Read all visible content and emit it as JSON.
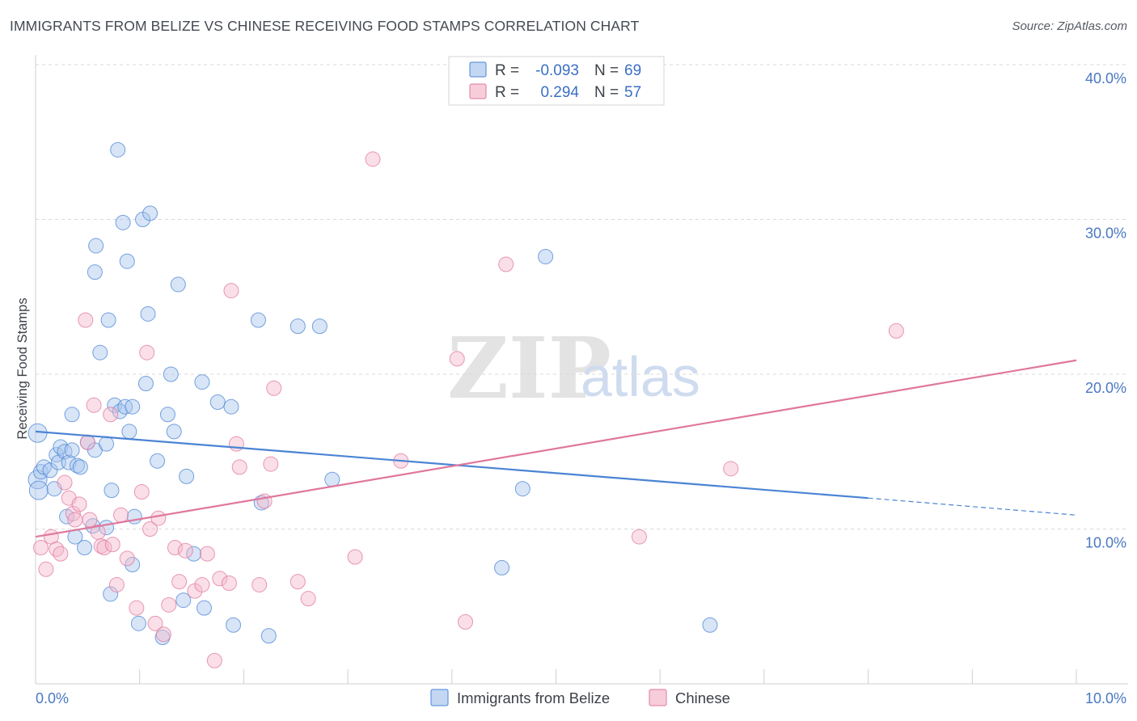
{
  "header": {
    "title": "IMMIGRANTS FROM BELIZE VS CHINESE RECEIVING FOOD STAMPS CORRELATION CHART",
    "source": "Source: ZipAtlas.com"
  },
  "watermark": {
    "zip": "ZIP",
    "atlas": "atlas"
  },
  "legend_box": {
    "rows": [
      {
        "r_label": "R =",
        "r_value": "-0.093",
        "n_label": "N =",
        "n_value": "69",
        "color": "#a9c6ee"
      },
      {
        "r_label": "R =",
        "r_value": "0.294",
        "n_label": "N =",
        "n_value": "57",
        "color": "#f4b8cb"
      }
    ]
  },
  "bottom_legend": {
    "items": [
      {
        "label": "Immigrants from Belize",
        "color": "#a9c6ee"
      },
      {
        "label": "Chinese",
        "color": "#f4b8cb"
      }
    ]
  },
  "chart_data": {
    "type": "scatter",
    "title": "IMMIGRANTS FROM BELIZE VS CHINESE RECEIVING FOOD STAMPS CORRELATION CHART",
    "xlabel": "",
    "ylabel": "Receiving Food Stamps",
    "xlim": [
      0,
      10
    ],
    "ylim": [
      0,
      40
    ],
    "x_tick_labels": [
      "0.0%",
      "10.0%"
    ],
    "y_ticks": [
      10,
      20,
      30,
      40
    ],
    "y_tick_labels": [
      "10.0%",
      "20.0%",
      "30.0%",
      "40.0%"
    ],
    "grid": true,
    "colors": {
      "belize": "#4a84d4",
      "chinese": "#e0779d",
      "belize_fill": "#a9c6ee",
      "chinese_fill": "#f4b8cb"
    },
    "series": [
      {
        "name": "Immigrants from Belize",
        "trend": {
          "x0": 0.0,
          "y0": 16.3,
          "x1": 8.0,
          "y1": 12.0,
          "x_dash_end": 10.0,
          "y_dash_end": 10.9
        },
        "points": [
          [
            0.02,
            16.2,
            2
          ],
          [
            0.02,
            13.2,
            2
          ],
          [
            0.03,
            12.5,
            2
          ],
          [
            0.05,
            13.7,
            1
          ],
          [
            0.08,
            14.0,
            1
          ],
          [
            0.14,
            13.8,
            1
          ],
          [
            0.18,
            12.6,
            1
          ],
          [
            0.2,
            14.8,
            1
          ],
          [
            0.22,
            14.3,
            1
          ],
          [
            0.24,
            15.3,
            1
          ],
          [
            0.28,
            15.0,
            1
          ],
          [
            0.3,
            10.8,
            1
          ],
          [
            0.32,
            14.3,
            1
          ],
          [
            0.35,
            15.1,
            1
          ],
          [
            0.35,
            17.4,
            1
          ],
          [
            0.38,
            9.5,
            1
          ],
          [
            0.4,
            14.1,
            1
          ],
          [
            0.43,
            14.0,
            1
          ],
          [
            0.47,
            8.8,
            1
          ],
          [
            0.5,
            15.6,
            1
          ],
          [
            0.55,
            10.2,
            1
          ],
          [
            0.57,
            15.1,
            1
          ],
          [
            0.57,
            26.6,
            1
          ],
          [
            0.58,
            28.3,
            1
          ],
          [
            0.62,
            21.4,
            1
          ],
          [
            0.68,
            10.1,
            1
          ],
          [
            0.68,
            15.5,
            1
          ],
          [
            0.7,
            23.5,
            1
          ],
          [
            0.72,
            5.8,
            1
          ],
          [
            0.73,
            12.5,
            1
          ],
          [
            0.76,
            18.0,
            1
          ],
          [
            0.79,
            34.5,
            1
          ],
          [
            0.81,
            17.6,
            1
          ],
          [
            0.84,
            29.8,
            1
          ],
          [
            0.86,
            17.9,
            1
          ],
          [
            0.88,
            27.3,
            1
          ],
          [
            0.9,
            16.3,
            1
          ],
          [
            0.93,
            17.9,
            1
          ],
          [
            0.93,
            7.7,
            1
          ],
          [
            0.95,
            10.8,
            1
          ],
          [
            0.99,
            3.9,
            1
          ],
          [
            1.03,
            30.0,
            1
          ],
          [
            1.06,
            19.4,
            1
          ],
          [
            1.08,
            23.9,
            1
          ],
          [
            1.1,
            30.4,
            1
          ],
          [
            1.17,
            14.4,
            1
          ],
          [
            1.22,
            3.0,
            1
          ],
          [
            1.27,
            17.4,
            1
          ],
          [
            1.3,
            20.0,
            1
          ],
          [
            1.33,
            16.3,
            1
          ],
          [
            1.37,
            25.8,
            1
          ],
          [
            1.42,
            5.4,
            1
          ],
          [
            1.45,
            13.4,
            1
          ],
          [
            1.52,
            8.4,
            1
          ],
          [
            1.6,
            19.5,
            1
          ],
          [
            1.62,
            4.9,
            1
          ],
          [
            1.75,
            18.2,
            1
          ],
          [
            1.88,
            17.9,
            1
          ],
          [
            1.9,
            3.8,
            1
          ],
          [
            2.14,
            23.5,
            1
          ],
          [
            2.17,
            11.7,
            1
          ],
          [
            2.24,
            3.1,
            1
          ],
          [
            2.52,
            23.1,
            1
          ],
          [
            2.73,
            23.1,
            1
          ],
          [
            2.85,
            13.2,
            1
          ],
          [
            4.48,
            7.5,
            1
          ],
          [
            4.68,
            12.6,
            1
          ],
          [
            4.9,
            27.6,
            1
          ],
          [
            6.48,
            3.8,
            1
          ]
        ]
      },
      {
        "name": "Chinese",
        "trend": {
          "x0": 0.0,
          "y0": 9.5,
          "x1": 10.0,
          "y1": 20.9
        },
        "points": [
          [
            0.05,
            8.8,
            1
          ],
          [
            0.1,
            7.4,
            1
          ],
          [
            0.15,
            9.5,
            1
          ],
          [
            0.2,
            8.7,
            1
          ],
          [
            0.24,
            8.4,
            1
          ],
          [
            0.28,
            13.0,
            1
          ],
          [
            0.32,
            12.0,
            1
          ],
          [
            0.36,
            11.0,
            1
          ],
          [
            0.38,
            10.6,
            1
          ],
          [
            0.42,
            11.6,
            1
          ],
          [
            0.48,
            23.5,
            1
          ],
          [
            0.5,
            15.6,
            1
          ],
          [
            0.52,
            10.6,
            1
          ],
          [
            0.56,
            18.0,
            1
          ],
          [
            0.6,
            9.8,
            1
          ],
          [
            0.63,
            8.9,
            1
          ],
          [
            0.66,
            8.8,
            1
          ],
          [
            0.72,
            17.4,
            1
          ],
          [
            0.74,
            9.0,
            1
          ],
          [
            0.78,
            6.4,
            1
          ],
          [
            0.82,
            10.9,
            1
          ],
          [
            0.88,
            8.1,
            1
          ],
          [
            0.97,
            4.9,
            1
          ],
          [
            1.02,
            12.4,
            1
          ],
          [
            1.07,
            21.4,
            1
          ],
          [
            1.1,
            10.0,
            1
          ],
          [
            1.15,
            3.9,
            1
          ],
          [
            1.18,
            10.7,
            1
          ],
          [
            1.23,
            3.2,
            1
          ],
          [
            1.28,
            5.1,
            1
          ],
          [
            1.34,
            8.8,
            1
          ],
          [
            1.38,
            6.6,
            1
          ],
          [
            1.44,
            8.6,
            1
          ],
          [
            1.53,
            6.0,
            1
          ],
          [
            1.6,
            6.4,
            1
          ],
          [
            1.65,
            8.4,
            1
          ],
          [
            1.72,
            1.5,
            1
          ],
          [
            1.77,
            6.8,
            1
          ],
          [
            1.86,
            6.5,
            1
          ],
          [
            1.88,
            25.4,
            1
          ],
          [
            1.93,
            15.5,
            1
          ],
          [
            1.96,
            14.0,
            1
          ],
          [
            2.15,
            6.4,
            1
          ],
          [
            2.2,
            11.8,
            1
          ],
          [
            2.26,
            14.2,
            1
          ],
          [
            2.29,
            19.1,
            1
          ],
          [
            2.52,
            6.6,
            1
          ],
          [
            2.62,
            5.5,
            1
          ],
          [
            3.07,
            8.2,
            1
          ],
          [
            3.24,
            33.9,
            1
          ],
          [
            3.51,
            14.4,
            1
          ],
          [
            4.05,
            21.0,
            1
          ],
          [
            4.13,
            4.0,
            1
          ],
          [
            4.52,
            27.1,
            1
          ],
          [
            5.8,
            9.5,
            1
          ],
          [
            6.68,
            13.9,
            1
          ],
          [
            8.27,
            22.8,
            1
          ]
        ]
      }
    ]
  }
}
